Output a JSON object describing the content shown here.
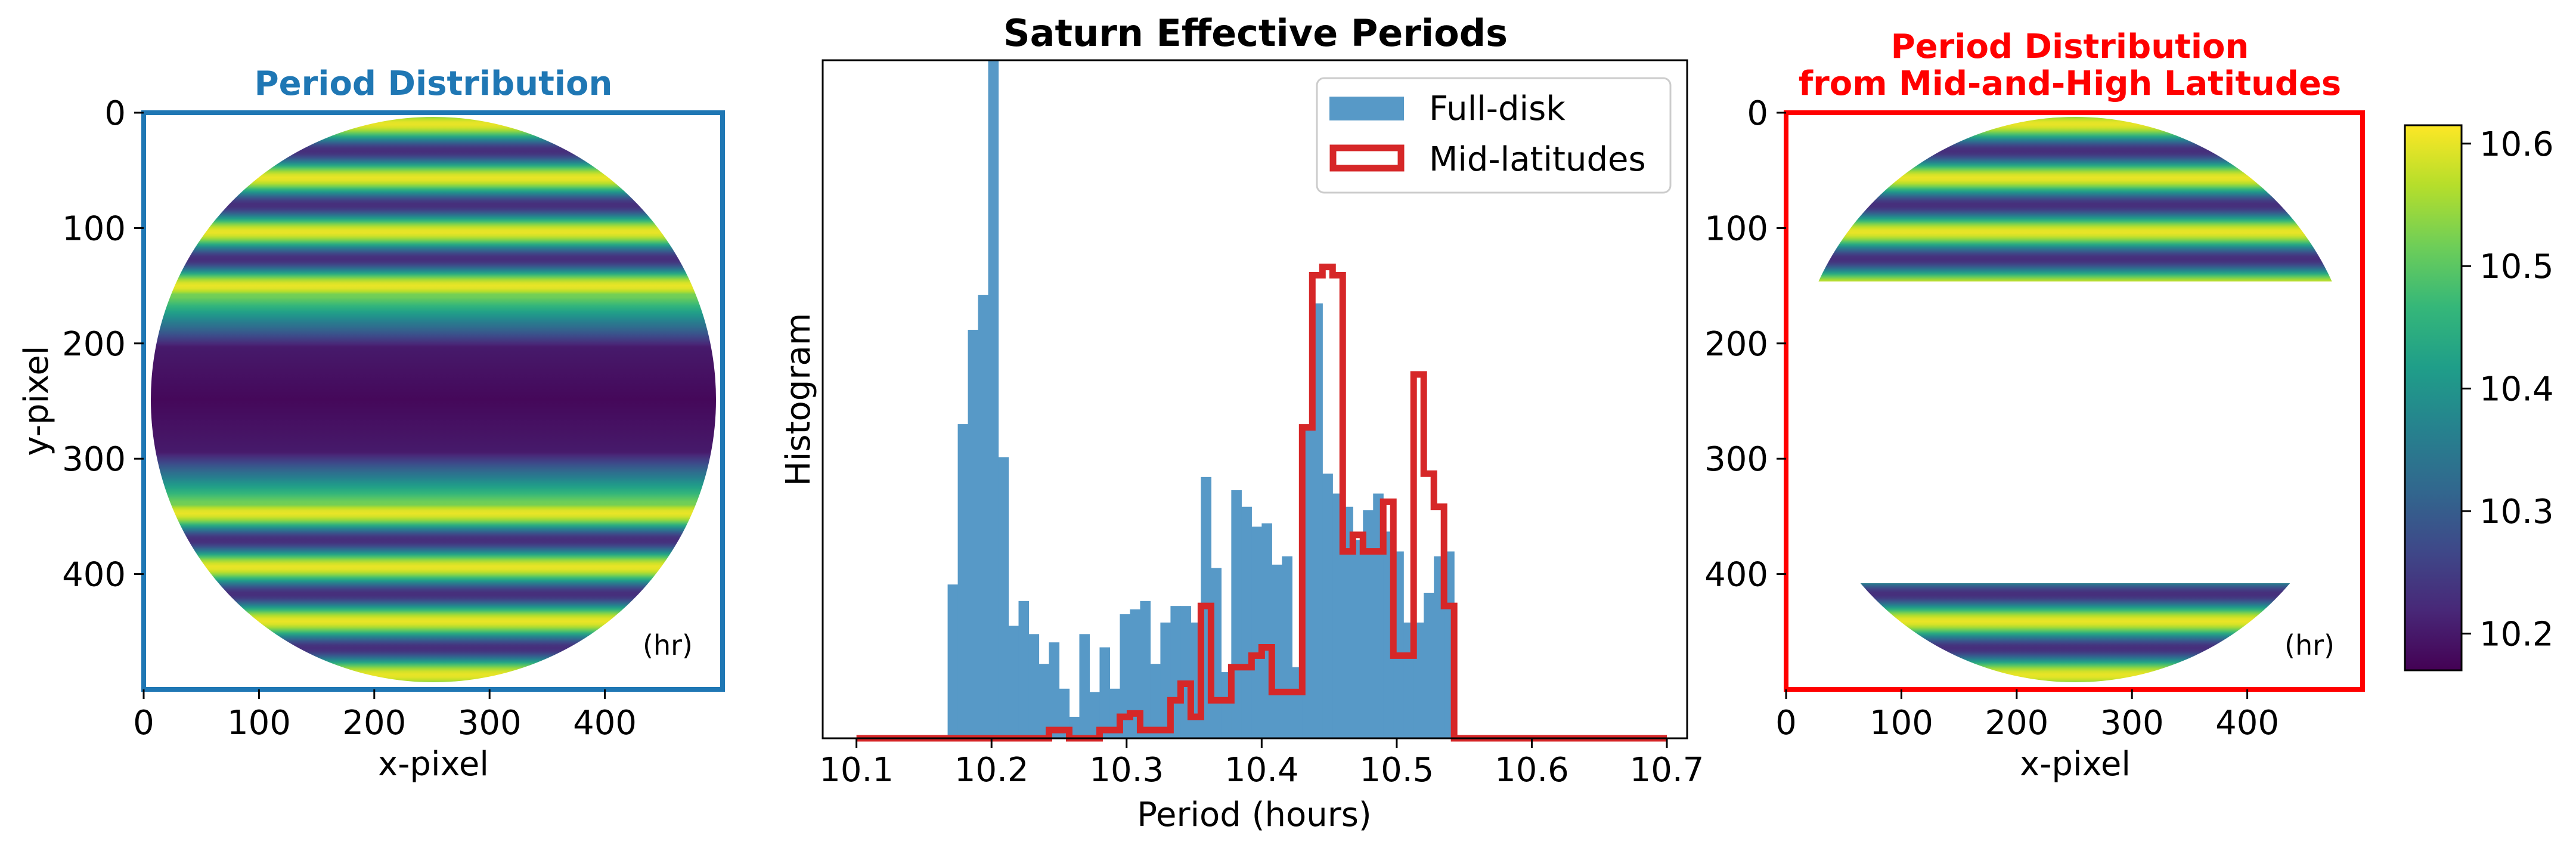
{
  "colors": {
    "left_frame": "#1f77b4",
    "right_frame": "#ff0000",
    "full_disk": "#5799c7",
    "mid_latitudes": "#d62728",
    "axis": "#000000"
  },
  "chart_data": [
    {
      "type": "heatmap",
      "title": "Period Distribution",
      "xlabel": "x-pixel",
      "ylabel": "y-pixel",
      "xlim": [
        0,
        500
      ],
      "ylim": [
        500,
        0
      ],
      "xticks": [
        0,
        100,
        200,
        300,
        400
      ],
      "yticks": [
        0,
        100,
        200,
        300,
        400
      ],
      "unit_label": "(hr)",
      "disk": {
        "center": [
          250,
          250
        ],
        "radius": 245
      },
      "masked_band_y": null
    },
    {
      "type": "bar",
      "title": "Saturn Effective Periods",
      "xlabel": "Period (hours)",
      "ylabel": "Histogram",
      "xlim": [
        10.075,
        10.715
      ],
      "ylim": [
        0,
        410
      ],
      "xticks": [
        10.1,
        10.2,
        10.3,
        10.4,
        10.5,
        10.6,
        10.7
      ],
      "xtick_labels": [
        "10.1",
        "10.2",
        "10.3",
        "10.4",
        "10.5",
        "10.6",
        "10.7"
      ],
      "bin_start": 10.1,
      "bin_width": 0.0075,
      "bin_count": 80,
      "legend_position": "upper right",
      "series": [
        {
          "name": "Full-disk",
          "style": "filled",
          "values": [
            0,
            0,
            0,
            0,
            0,
            0,
            0,
            0,
            0,
            93,
            190,
            247,
            268,
            410,
            170,
            68,
            83,
            63,
            45,
            58,
            30,
            13,
            63,
            28,
            55,
            30,
            75,
            78,
            83,
            45,
            70,
            80,
            80,
            70,
            158,
            103,
            40,
            150,
            140,
            128,
            130,
            105,
            110,
            43,
            188,
            263,
            160,
            148,
            140,
            120,
            138,
            148,
            125,
            113,
            70,
            70,
            88,
            110,
            113,
            0,
            0,
            0,
            0,
            0,
            0,
            0,
            0,
            0,
            0,
            0,
            0,
            0,
            0,
            0,
            0,
            0,
            0,
            0,
            0,
            0
          ]
        },
        {
          "name": "Mid-latitudes",
          "style": "step",
          "values": [
            0,
            0,
            0,
            0,
            0,
            0,
            0,
            0,
            0,
            0,
            0,
            0,
            0,
            0,
            0,
            0,
            0,
            0,
            0,
            5,
            5,
            0,
            0,
            0,
            5,
            5,
            13,
            15,
            5,
            5,
            5,
            23,
            33,
            13,
            80,
            23,
            23,
            43,
            43,
            50,
            55,
            28,
            28,
            28,
            188,
            280,
            285,
            280,
            113,
            123,
            113,
            113,
            143,
            50,
            50,
            220,
            160,
            140,
            80,
            0,
            0,
            0,
            0,
            0,
            0,
            0,
            0,
            0,
            0,
            0,
            0,
            0,
            0,
            0,
            0,
            0,
            0,
            0,
            0,
            0
          ]
        }
      ]
    },
    {
      "type": "heatmap",
      "title": "Period Distribution\nfrom Mid-and-High Latitudes",
      "title_lines": [
        "Period Distribution",
        "from Mid-and-High Latitudes"
      ],
      "xlabel": "x-pixel",
      "ylabel": "",
      "xlim": [
        0,
        500
      ],
      "ylim": [
        500,
        0
      ],
      "xticks": [
        0,
        100,
        200,
        300,
        400
      ],
      "yticks": [
        0,
        100,
        200,
        300,
        400
      ],
      "unit_label": "(hr)",
      "disk": {
        "center": [
          250,
          250
        ],
        "radius": 245
      },
      "masked_band_y": [
        145,
        352
      ]
    },
    {
      "type": "colorbar",
      "cmap": "viridis",
      "range": [
        10.17,
        10.615
      ],
      "ticks": [
        10.2,
        10.3,
        10.4,
        10.5,
        10.6
      ],
      "tick_labels": [
        "10.2",
        "10.3",
        "10.4",
        "10.5",
        "10.6"
      ]
    }
  ]
}
